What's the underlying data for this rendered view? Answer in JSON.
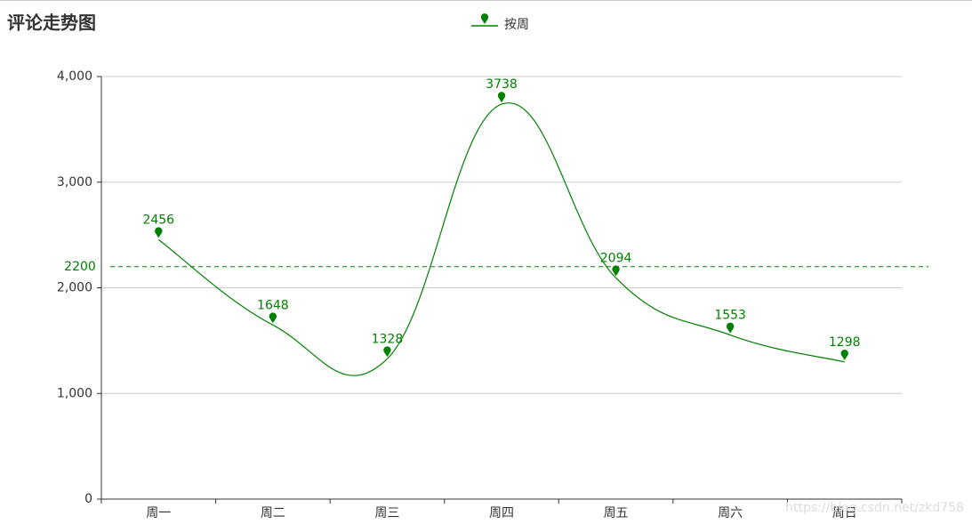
{
  "chart_data": {
    "type": "line",
    "title": "评论走势图",
    "categories": [
      "周一",
      "周二",
      "周三",
      "周四",
      "周五",
      "周六",
      "周日"
    ],
    "series": [
      {
        "name": "按周",
        "color": "#008000",
        "values": [
          2456,
          1648,
          1328,
          3738,
          2094,
          1553,
          1298
        ]
      }
    ],
    "ylim": [
      0,
      4000
    ],
    "yticks": [
      0,
      {
        "value": 1000,
        "label": "1,000"
      },
      {
        "value": 2000,
        "label": "2,000"
      },
      {
        "value": 3000,
        "label": "3,000"
      },
      {
        "value": 4000,
        "label": "4,000"
      }
    ],
    "grid": true,
    "smooth": true,
    "mark_line": {
      "value": 2200
    },
    "watermark": "https://blog.csdn.net/zkd758"
  }
}
